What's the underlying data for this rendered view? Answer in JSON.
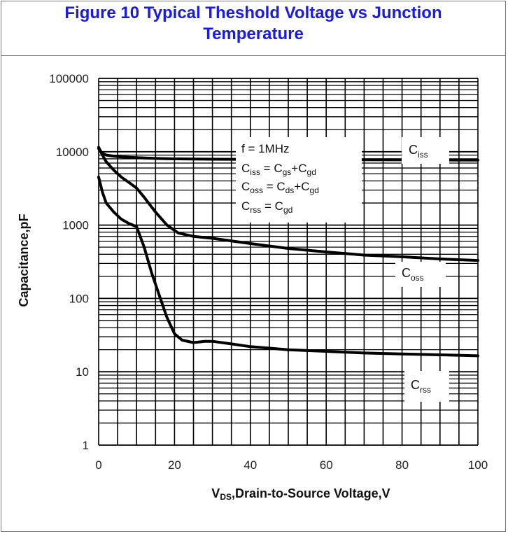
{
  "title": {
    "line1": "Figure 10 Typical Theshold Voltage vs Junction",
    "line2": "Temperature"
  },
  "chart_data": {
    "type": "line",
    "xlabel": "V",
    "xlabel_sub": "DS",
    "xlabel_rest": ",Drain-to-Source Voltage,V",
    "ylabel": "Capacitance,pF",
    "xlim": [
      0,
      100
    ],
    "ylim": [
      1,
      100000
    ],
    "yscale": "log",
    "grid": true,
    "x_ticks": [
      "0",
      "20",
      "40",
      "60",
      "80",
      "100"
    ],
    "y_ticks": [
      "1",
      "10",
      "100",
      "1000",
      "10000",
      "100000"
    ],
    "annotation": {
      "f": "f = 1MHz",
      "ciss_eq": [
        [
          "C"
        ],
        [
          "iss"
        ],
        [
          " = C"
        ],
        [
          "gs"
        ],
        [
          "+C"
        ],
        [
          "gd"
        ]
      ],
      "coss_eq": [
        [
          "C"
        ],
        [
          "oss"
        ],
        [
          " = C"
        ],
        [
          "ds"
        ],
        [
          "+C"
        ],
        [
          "gd"
        ]
      ],
      "crss_eq": [
        [
          "C"
        ],
        [
          "rss"
        ],
        [
          " = C"
        ],
        [
          "gd"
        ]
      ]
    },
    "series": [
      {
        "name": "Ciss",
        "label_main": "C",
        "label_sub": "iss",
        "x": [
          0,
          1,
          2,
          4,
          6,
          10,
          15,
          20,
          30,
          40,
          60,
          80,
          100
        ],
        "y": [
          11000,
          9500,
          9000,
          8700,
          8500,
          8300,
          8100,
          8000,
          7900,
          7850,
          7800,
          7750,
          7700
        ]
      },
      {
        "name": "Coss",
        "label_main": "C",
        "label_sub": "oss",
        "x": [
          0,
          1,
          2,
          4,
          6,
          8,
          10,
          12,
          15,
          18,
          21,
          25,
          30,
          40,
          50,
          60,
          70,
          80,
          90,
          100
        ],
        "y": [
          11500,
          9000,
          7300,
          5600,
          4500,
          3800,
          3200,
          2400,
          1500,
          1000,
          780,
          700,
          660,
          560,
          480,
          430,
          390,
          370,
          345,
          330
        ]
      },
      {
        "name": "Crss",
        "label_main": "C",
        "label_sub": "rss",
        "x": [
          0,
          1,
          2,
          4,
          6,
          8,
          10,
          12,
          14,
          16,
          18,
          20,
          22,
          25,
          28,
          30,
          35,
          40,
          50,
          60,
          70,
          80,
          90,
          100
        ],
        "y": [
          4500,
          2800,
          2000,
          1500,
          1200,
          1050,
          950,
          500,
          220,
          110,
          55,
          33,
          27,
          25,
          26,
          26,
          24,
          22,
          20,
          19,
          18,
          17.5,
          17,
          16.5
        ]
      }
    ]
  }
}
